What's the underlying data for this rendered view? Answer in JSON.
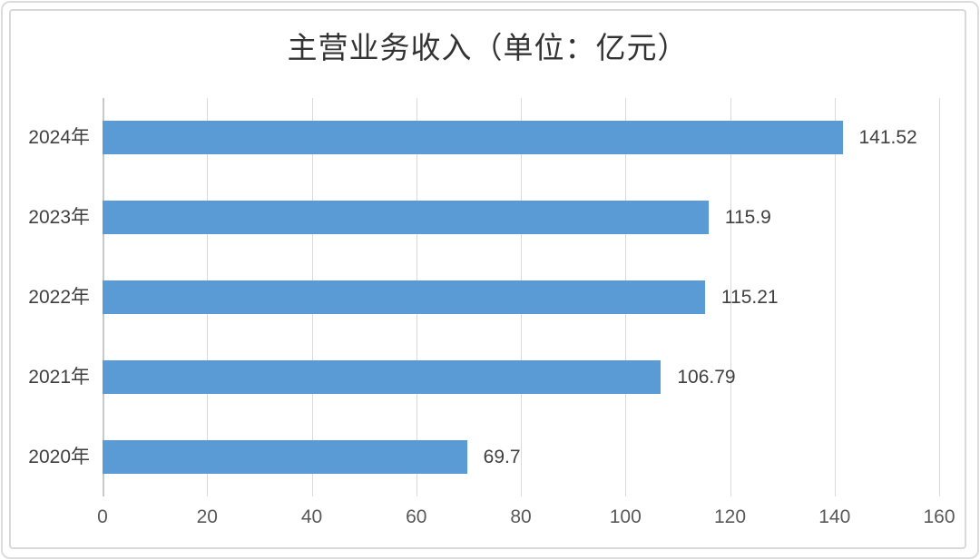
{
  "chart_data": {
    "type": "bar",
    "orientation": "horizontal",
    "title": "主营业务收入（单位：亿元）",
    "categories": [
      "2024年",
      "2023年",
      "2022年",
      "2021年",
      "2020年"
    ],
    "values": [
      141.52,
      115.9,
      115.21,
      106.79,
      69.7
    ],
    "value_labels": [
      "141.52",
      "115.9",
      "115.21",
      "106.79",
      "69.7"
    ],
    "xlabel": "",
    "ylabel": "",
    "xlim": [
      0,
      160
    ],
    "xticks": [
      0,
      20,
      40,
      60,
      80,
      100,
      120,
      140,
      160
    ],
    "grid": true,
    "legend": false,
    "colors": {
      "bar": "#5B9BD5",
      "gridline": "#DADADA",
      "axis_line": "#C9C9C9",
      "tick_label": "#595959",
      "category_label": "#3F3F3F",
      "value_label": "#404040",
      "title": "#333333",
      "frame_border": "#D9D9D9"
    }
  }
}
